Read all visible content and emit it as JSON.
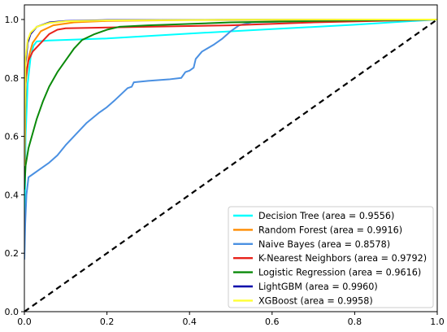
{
  "chart_data": {
    "type": "line",
    "title": "",
    "xlabel": "",
    "ylabel": "",
    "xlim": [
      0,
      1
    ],
    "ylim": [
      0,
      1.05
    ],
    "xticks": [
      "0.0",
      "0.2",
      "0.4",
      "0.6",
      "0.8",
      "1.0"
    ],
    "yticks": [
      "0.0",
      "0.2",
      "0.4",
      "0.6",
      "0.8",
      "1.0"
    ],
    "grid": false,
    "legend_position": "lower-right",
    "diagonal": {
      "style": "dashed",
      "color": "#000000",
      "points": [
        [
          0,
          0
        ],
        [
          1,
          1
        ]
      ]
    },
    "series": [
      {
        "name": "Decision Tree (area = 0.9556)",
        "color": "#00ffff",
        "points": [
          [
            0,
            0.2
          ],
          [
            0.003,
            0.6
          ],
          [
            0.008,
            0.78
          ],
          [
            0.015,
            0.87
          ],
          [
            0.022,
            0.91
          ],
          [
            0.03,
            0.925
          ],
          [
            0.06,
            0.928
          ],
          [
            0.2,
            0.935
          ],
          [
            0.4,
            0.952
          ],
          [
            0.6,
            0.967
          ],
          [
            0.8,
            0.982
          ],
          [
            1.0,
            1.0
          ]
        ]
      },
      {
        "name": "Random Forest (area = 0.9916)",
        "color": "#ff8c00",
        "points": [
          [
            0,
            0.45
          ],
          [
            0.003,
            0.78
          ],
          [
            0.01,
            0.87
          ],
          [
            0.02,
            0.92
          ],
          [
            0.04,
            0.96
          ],
          [
            0.07,
            0.98
          ],
          [
            0.12,
            0.99
          ],
          [
            0.2,
            0.995
          ],
          [
            0.4,
            0.998
          ],
          [
            0.7,
            0.999
          ],
          [
            1.0,
            1.0
          ]
        ]
      },
      {
        "name": "Naive Bayes (area = 0.8578)",
        "color": "#4a90e2",
        "points": [
          [
            0,
            0.18
          ],
          [
            0.002,
            0.3
          ],
          [
            0.005,
            0.4
          ],
          [
            0.01,
            0.46
          ],
          [
            0.02,
            0.47
          ],
          [
            0.04,
            0.49
          ],
          [
            0.06,
            0.51
          ],
          [
            0.08,
            0.535
          ],
          [
            0.1,
            0.57
          ],
          [
            0.12,
            0.6
          ],
          [
            0.13,
            0.615
          ],
          [
            0.15,
            0.645
          ],
          [
            0.18,
            0.68
          ],
          [
            0.2,
            0.7
          ],
          [
            0.22,
            0.725
          ],
          [
            0.25,
            0.765
          ],
          [
            0.26,
            0.77
          ],
          [
            0.265,
            0.785
          ],
          [
            0.3,
            0.79
          ],
          [
            0.35,
            0.795
          ],
          [
            0.38,
            0.8
          ],
          [
            0.39,
            0.82
          ],
          [
            0.4,
            0.825
          ],
          [
            0.41,
            0.835
          ],
          [
            0.415,
            0.865
          ],
          [
            0.43,
            0.89
          ],
          [
            0.46,
            0.915
          ],
          [
            0.48,
            0.935
          ],
          [
            0.5,
            0.96
          ],
          [
            0.52,
            0.98
          ],
          [
            0.55,
            0.99
          ],
          [
            0.7,
            0.995
          ],
          [
            1.0,
            1.0
          ]
        ]
      },
      {
        "name": "K-Nearest Neighbors (area = 0.9792)",
        "color": "#e8221b",
        "points": [
          [
            0,
            0.43
          ],
          [
            0.003,
            0.8
          ],
          [
            0.01,
            0.86
          ],
          [
            0.02,
            0.89
          ],
          [
            0.04,
            0.92
          ],
          [
            0.06,
            0.95
          ],
          [
            0.08,
            0.965
          ],
          [
            0.1,
            0.97
          ],
          [
            0.3,
            0.975
          ],
          [
            0.5,
            0.98
          ],
          [
            0.7,
            0.99
          ],
          [
            0.85,
            0.995
          ],
          [
            1.0,
            1.0
          ]
        ]
      },
      {
        "name": "Logistic Regression (area = 0.9616)",
        "color": "#0a8a0a",
        "points": [
          [
            0,
            0.42
          ],
          [
            0.003,
            0.5
          ],
          [
            0.01,
            0.56
          ],
          [
            0.02,
            0.61
          ],
          [
            0.03,
            0.66
          ],
          [
            0.045,
            0.72
          ],
          [
            0.06,
            0.77
          ],
          [
            0.08,
            0.82
          ],
          [
            0.1,
            0.86
          ],
          [
            0.12,
            0.9
          ],
          [
            0.14,
            0.93
          ],
          [
            0.17,
            0.95
          ],
          [
            0.2,
            0.965
          ],
          [
            0.23,
            0.975
          ],
          [
            0.3,
            0.98
          ],
          [
            0.5,
            0.99
          ],
          [
            0.7,
            0.995
          ],
          [
            1.0,
            1.0
          ]
        ]
      },
      {
        "name": "LightGBM (area = 0.9960)",
        "color": "#0000aa",
        "points": [
          [
            0,
            0.5
          ],
          [
            0.003,
            0.85
          ],
          [
            0.008,
            0.92
          ],
          [
            0.015,
            0.95
          ],
          [
            0.03,
            0.975
          ],
          [
            0.06,
            0.99
          ],
          [
            0.1,
            0.995
          ],
          [
            0.2,
            0.998
          ],
          [
            0.5,
            0.999
          ],
          [
            1.0,
            1.0
          ]
        ]
      },
      {
        "name": "XGBoost (area = 0.9958)",
        "color": "#ffff33",
        "points": [
          [
            0,
            0.5
          ],
          [
            0.003,
            0.87
          ],
          [
            0.008,
            0.93
          ],
          [
            0.015,
            0.955
          ],
          [
            0.03,
            0.975
          ],
          [
            0.06,
            0.988
          ],
          [
            0.1,
            0.994
          ],
          [
            0.2,
            0.997
          ],
          [
            0.5,
            0.999
          ],
          [
            1.0,
            1.0
          ]
        ]
      }
    ]
  }
}
